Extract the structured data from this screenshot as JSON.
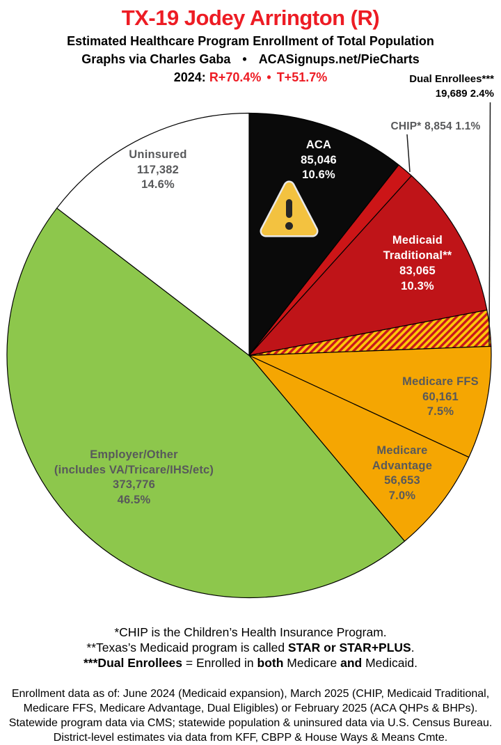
{
  "header": {
    "title": "TX-19 Jodey Arrington (R)",
    "subtitle": "Estimated Healthcare Program Enrollment of Total Population",
    "credit_left": "Graphs via Charles Gaba",
    "credit_sep": "•",
    "credit_right": "ACASignups.net/PieCharts",
    "partisan_year": "2024:",
    "partisan_r": "R+70.4%",
    "partisan_sep": "•",
    "partisan_t": "T+51.7%"
  },
  "colors": {
    "accent_red": "#ed1c24",
    "label_gray": "#58595b",
    "aca_black": "#0a0a0a",
    "chip_red": "#cc1517",
    "medicaid_red": "#bf1418",
    "medicare_amber": "#f5a602",
    "employer_green": "#8dc74c",
    "uninsured_white": "#ffffff",
    "hatch_bg": "#ffc60a",
    "hatch_stripe": "#c8171d"
  },
  "chart_data": {
    "type": "pie",
    "title": "Estimated Healthcare Program Enrollment of Total Population",
    "start_angle_deg": 0,
    "direction": "clockwise",
    "legend_position": "labels-on-slices",
    "slices": [
      {
        "name": "ACA",
        "label_lines": [
          "ACA"
        ],
        "value": 85046,
        "value_label": "85,046",
        "pct": 10.6,
        "pct_label": "10.6%",
        "color": "#0a0a0a",
        "text_color": "#ffffff"
      },
      {
        "name": "CHIP",
        "label": "CHIP*",
        "value": 8854,
        "value_label": "8,854",
        "pct": 1.1,
        "pct_label": "1.1%",
        "color": "#cc1517"
      },
      {
        "name": "Medicaid Traditional",
        "label_lines": [
          "Medicaid",
          "Traditional**"
        ],
        "value": 83065,
        "value_label": "83,065",
        "pct": 10.3,
        "pct_label": "10.3%",
        "color": "#bf1418",
        "text_color": "#ffffff"
      },
      {
        "name": "Dual Enrollees",
        "label": "Dual Enrollees***",
        "value": 19689,
        "value_label": "19,689",
        "pct": 2.4,
        "pct_label": "2.4%",
        "color": "hatch"
      },
      {
        "name": "Medicare FFS",
        "label_lines": [
          "Medicare FFS"
        ],
        "value": 60161,
        "value_label": "60,161",
        "pct": 7.5,
        "pct_label": "7.5%",
        "color": "#f5a602",
        "text_color": "#58595b"
      },
      {
        "name": "Medicare Advantage",
        "label_lines": [
          "Medicare",
          "Advantage"
        ],
        "value": 56653,
        "value_label": "56,653",
        "pct": 7.0,
        "pct_label": "7.0%",
        "color": "#f5a602",
        "text_color": "#58595b"
      },
      {
        "name": "Employer/Other",
        "label_lines": [
          "Employer/Other",
          "(includes VA/Tricare/IHS/etc)"
        ],
        "value": 373776,
        "value_label": "373,776",
        "pct": 46.5,
        "pct_label": "46.5%",
        "color": "#8dc74c",
        "text_color": "#58595b"
      },
      {
        "name": "Uninsured",
        "label_lines": [
          "Uninsured"
        ],
        "value": 117382,
        "value_label": "117,382",
        "pct": 14.6,
        "pct_label": "14.6%",
        "color": "#ffffff",
        "text_color": "#58595b"
      }
    ]
  },
  "warning_icon": "warning-triangle",
  "footnotes": {
    "lines": [
      [
        {
          "text": "*CHIP is the Children’s Health Insurance Program.",
          "bold": false
        }
      ],
      [
        {
          "text": "**Texas’s Medicaid program is called ",
          "bold": false
        },
        {
          "text": "STAR or STAR+PLUS",
          "bold": true
        },
        {
          "text": ".",
          "bold": false
        }
      ],
      [
        {
          "text": "***Dual Enrollees",
          "bold": true
        },
        {
          "text": " = Enrolled in ",
          "bold": false
        },
        {
          "text": "both",
          "bold": true
        },
        {
          "text": " Medicare ",
          "bold": false
        },
        {
          "text": "and",
          "bold": true
        },
        {
          "text": " Medicaid.",
          "bold": false
        }
      ]
    ]
  },
  "source": {
    "lines": [
      "Enrollment data as of: June 2024 (Medicaid expansion), March 2025 (CHIP, Medicaid Traditional,",
      "Medicare FFS, Medicare Advantage, Dual Eligibles) or February 2025 (ACA QHPs & BHPs).",
      "Statewide program data via CMS; statewide population & uninsured data via U.S. Census Bureau.",
      "District-level estimates via data from KFF, CBPP & House Ways & Means Cmte."
    ]
  }
}
